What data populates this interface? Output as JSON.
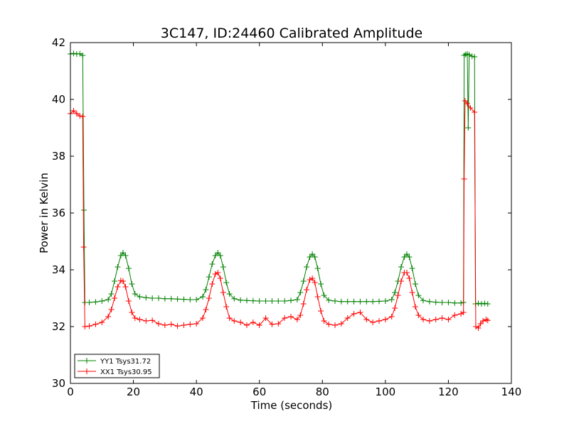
{
  "chart_data": {
    "type": "line",
    "title": "3C147, ID:24460 Calibrated Amplitude",
    "xlabel": "Time (seconds)",
    "ylabel": "Power in Kelvin",
    "xlim": [
      0,
      140
    ],
    "ylim": [
      30,
      42
    ],
    "xticks": [
      0,
      20,
      40,
      60,
      80,
      100,
      120,
      140
    ],
    "yticks": [
      30,
      32,
      34,
      36,
      38,
      40,
      42
    ],
    "grid": false,
    "legend_position": "lower-left",
    "series": [
      {
        "name": "YY1 Tsys31.72",
        "color": "#008000",
        "marker": "plus",
        "points": [
          [
            0.0,
            41.6
          ],
          [
            1.0,
            41.62
          ],
          [
            2.0,
            41.6
          ],
          [
            3.0,
            41.61
          ],
          [
            3.9,
            41.55
          ],
          [
            4.3,
            36.1
          ],
          [
            4.6,
            32.85
          ],
          [
            6,
            32.85
          ],
          [
            8,
            32.87
          ],
          [
            10,
            32.9
          ],
          [
            12,
            32.95
          ],
          [
            13,
            33.15
          ],
          [
            14,
            33.6
          ],
          [
            15,
            34.1
          ],
          [
            16,
            34.5
          ],
          [
            16.7,
            34.6
          ],
          [
            17.5,
            34.5
          ],
          [
            18.5,
            34.05
          ],
          [
            19.5,
            33.5
          ],
          [
            20.5,
            33.15
          ],
          [
            22,
            33.05
          ],
          [
            24,
            33.02
          ],
          [
            26,
            33.0
          ],
          [
            28,
            33.0
          ],
          [
            30,
            32.98
          ],
          [
            32,
            32.98
          ],
          [
            34,
            32.97
          ],
          [
            36,
            32.96
          ],
          [
            38,
            32.95
          ],
          [
            40,
            32.95
          ],
          [
            42,
            33.05
          ],
          [
            43,
            33.3
          ],
          [
            44,
            33.75
          ],
          [
            45,
            34.2
          ],
          [
            46,
            34.5
          ],
          [
            46.8,
            34.6
          ],
          [
            47.6,
            34.5
          ],
          [
            48.5,
            34.1
          ],
          [
            49.5,
            33.55
          ],
          [
            50.5,
            33.15
          ],
          [
            52,
            32.98
          ],
          [
            54,
            32.93
          ],
          [
            56,
            32.92
          ],
          [
            58,
            32.91
          ],
          [
            60,
            32.9
          ],
          [
            62,
            32.9
          ],
          [
            64,
            32.9
          ],
          [
            66,
            32.9
          ],
          [
            68,
            32.9
          ],
          [
            70,
            32.92
          ],
          [
            72,
            32.95
          ],
          [
            73,
            33.2
          ],
          [
            74,
            33.6
          ],
          [
            75,
            34.1
          ],
          [
            76,
            34.45
          ],
          [
            76.8,
            34.55
          ],
          [
            77.6,
            34.45
          ],
          [
            78.5,
            34.05
          ],
          [
            79.5,
            33.5
          ],
          [
            80.5,
            33.1
          ],
          [
            82,
            32.93
          ],
          [
            84,
            32.9
          ],
          [
            86,
            32.88
          ],
          [
            88,
            32.88
          ],
          [
            90,
            32.88
          ],
          [
            92,
            32.88
          ],
          [
            94,
            32.88
          ],
          [
            96,
            32.88
          ],
          [
            98,
            32.89
          ],
          [
            100,
            32.9
          ],
          [
            102,
            32.95
          ],
          [
            103,
            33.2
          ],
          [
            104,
            33.6
          ],
          [
            105,
            34.1
          ],
          [
            106,
            34.45
          ],
          [
            106.8,
            34.55
          ],
          [
            107.6,
            34.45
          ],
          [
            108.5,
            34.05
          ],
          [
            109.5,
            33.5
          ],
          [
            110.5,
            33.1
          ],
          [
            112,
            32.92
          ],
          [
            114,
            32.88
          ],
          [
            116,
            32.86
          ],
          [
            118,
            32.85
          ],
          [
            120,
            32.85
          ],
          [
            122,
            32.83
          ],
          [
            124,
            32.83
          ],
          [
            124.8,
            32.85
          ],
          [
            125.0,
            41.55
          ],
          [
            125.5,
            41.58
          ],
          [
            126,
            41.6
          ],
          [
            126.3,
            39.0
          ],
          [
            126.6,
            41.57
          ],
          [
            127.5,
            41.52
          ],
          [
            128.3,
            41.5
          ],
          [
            128.6,
            32.8
          ],
          [
            129.5,
            32.82
          ],
          [
            130.5,
            32.8
          ],
          [
            131.5,
            32.82
          ],
          [
            132.5,
            32.8
          ]
        ]
      },
      {
        "name": "XX1 Tsys30.95",
        "color": "#ff0000",
        "marker": "plus",
        "points": [
          [
            0.0,
            39.5
          ],
          [
            1.0,
            39.6
          ],
          [
            2.0,
            39.5
          ],
          [
            3.0,
            39.42
          ],
          [
            3.9,
            39.4
          ],
          [
            4.2,
            34.8
          ],
          [
            4.6,
            32.0
          ],
          [
            6,
            32.02
          ],
          [
            8,
            32.08
          ],
          [
            10,
            32.15
          ],
          [
            12,
            32.35
          ],
          [
            13,
            32.6
          ],
          [
            14,
            33.0
          ],
          [
            15,
            33.4
          ],
          [
            16,
            33.62
          ],
          [
            16.7,
            33.6
          ],
          [
            17.5,
            33.4
          ],
          [
            18.5,
            32.9
          ],
          [
            19.5,
            32.5
          ],
          [
            20.5,
            32.3
          ],
          [
            22,
            32.25
          ],
          [
            24,
            32.2
          ],
          [
            26,
            32.22
          ],
          [
            28,
            32.1
          ],
          [
            30,
            32.05
          ],
          [
            32,
            32.08
          ],
          [
            34,
            32.02
          ],
          [
            36,
            32.05
          ],
          [
            38,
            32.08
          ],
          [
            40,
            32.1
          ],
          [
            42,
            32.3
          ],
          [
            43,
            32.6
          ],
          [
            44,
            33.0
          ],
          [
            45,
            33.5
          ],
          [
            46,
            33.85
          ],
          [
            46.8,
            33.9
          ],
          [
            47.6,
            33.7
          ],
          [
            48.5,
            33.2
          ],
          [
            49.5,
            32.7
          ],
          [
            50.5,
            32.3
          ],
          [
            52,
            32.2
          ],
          [
            54,
            32.15
          ],
          [
            56,
            32.05
          ],
          [
            58,
            32.15
          ],
          [
            60,
            32.05
          ],
          [
            62,
            32.3
          ],
          [
            64,
            32.08
          ],
          [
            66,
            32.1
          ],
          [
            68,
            32.3
          ],
          [
            70,
            32.35
          ],
          [
            72,
            32.25
          ],
          [
            73,
            32.4
          ],
          [
            74,
            32.8
          ],
          [
            75,
            33.3
          ],
          [
            76,
            33.65
          ],
          [
            76.8,
            33.7
          ],
          [
            77.6,
            33.55
          ],
          [
            78.5,
            33.05
          ],
          [
            79.5,
            32.55
          ],
          [
            80.5,
            32.2
          ],
          [
            82,
            32.08
          ],
          [
            84,
            32.05
          ],
          [
            86,
            32.1
          ],
          [
            88,
            32.3
          ],
          [
            90,
            32.45
          ],
          [
            92,
            32.5
          ],
          [
            94,
            32.25
          ],
          [
            96,
            32.15
          ],
          [
            98,
            32.2
          ],
          [
            100,
            32.25
          ],
          [
            102,
            32.35
          ],
          [
            103,
            32.65
          ],
          [
            104,
            33.1
          ],
          [
            105,
            33.6
          ],
          [
            106,
            33.9
          ],
          [
            106.8,
            33.9
          ],
          [
            107.6,
            33.7
          ],
          [
            108.5,
            33.2
          ],
          [
            109.5,
            32.7
          ],
          [
            110.5,
            32.4
          ],
          [
            112,
            32.25
          ],
          [
            114,
            32.2
          ],
          [
            116,
            32.25
          ],
          [
            118,
            32.3
          ],
          [
            120,
            32.25
          ],
          [
            122,
            32.4
          ],
          [
            124,
            32.45
          ],
          [
            124.8,
            32.5
          ],
          [
            125.0,
            37.2
          ],
          [
            125.3,
            39.95
          ],
          [
            126,
            39.85
          ],
          [
            127,
            39.7
          ],
          [
            128.3,
            39.55
          ],
          [
            128.7,
            32.0
          ],
          [
            129.5,
            31.95
          ],
          [
            130.2,
            32.1
          ],
          [
            131,
            32.2
          ],
          [
            132,
            32.25
          ],
          [
            132.5,
            32.22
          ]
        ]
      }
    ]
  }
}
